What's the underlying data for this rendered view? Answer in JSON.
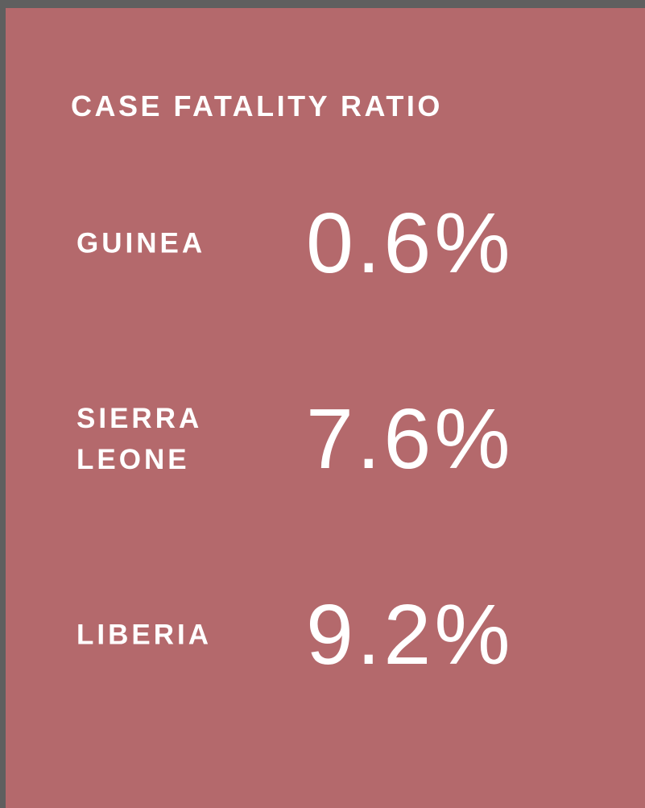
{
  "title": "CASE FATALITY RATIO",
  "rows": [
    {
      "label": "GUINEA",
      "value": "0.6%"
    },
    {
      "label": "SIERRA LEONE",
      "value": "7.6%"
    },
    {
      "label": "LIBERIA",
      "value": "9.2%"
    }
  ]
}
